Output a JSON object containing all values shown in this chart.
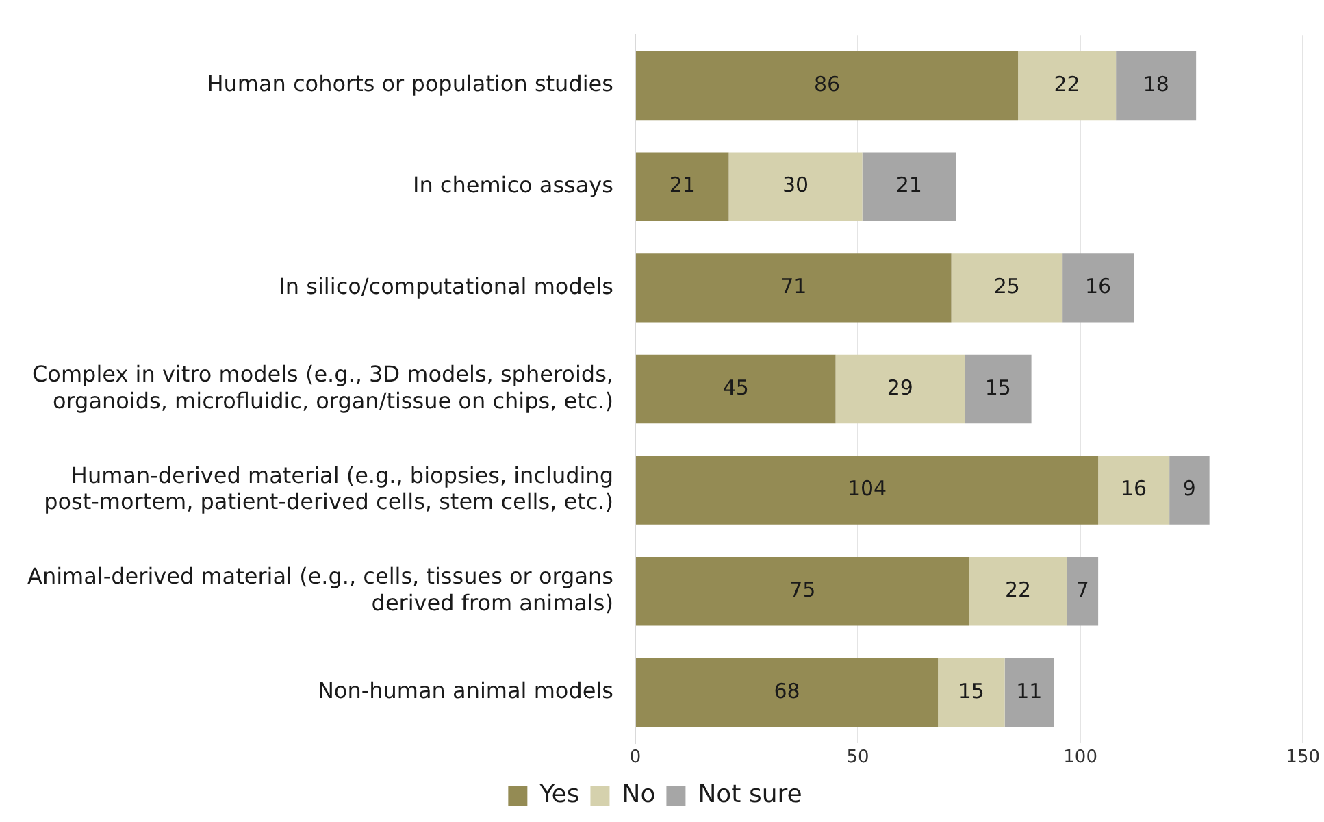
{
  "chart_data": {
    "type": "bar",
    "orientation": "horizontal",
    "stacked": true,
    "categories": [
      "Human cohorts or population studies",
      "In chemico assays",
      "In silico/computational models",
      "Complex in vitro models (e.g., 3D models, spheroids, organoids, microfluidic, organ/tissue on chips, etc.)",
      "Human-derived material (e.g., biopsies, including post-mortem, patient-derived cells, stem cells, etc.)",
      "Animal-derived material (e.g., cells, tissues or organs derived from animals)",
      "Non-human animal models"
    ],
    "series": [
      {
        "name": "Yes",
        "color": "#948b54",
        "values": [
          86,
          21,
          71,
          45,
          104,
          75,
          68
        ]
      },
      {
        "name": "No",
        "color": "#d5d1ad",
        "values": [
          22,
          30,
          25,
          29,
          16,
          22,
          15
        ]
      },
      {
        "name": "Not sure",
        "color": "#a6a6a6",
        "values": [
          18,
          21,
          16,
          15,
          9,
          7,
          11
        ]
      }
    ],
    "xlim": [
      0,
      150
    ],
    "xticks": [
      0,
      50,
      100,
      150
    ],
    "grid": "x",
    "legend": "bottom",
    "data_labels": true
  }
}
